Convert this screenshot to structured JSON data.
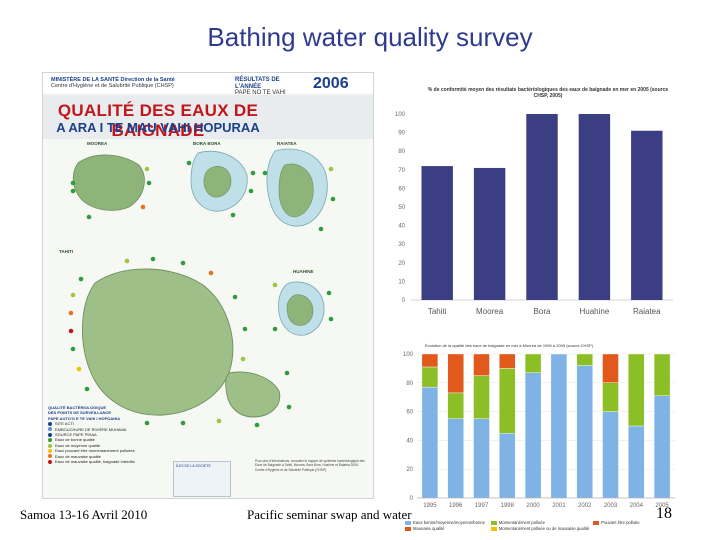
{
  "slide": {
    "title": "Bathing water quality survey",
    "footer_left": "Samoa 13-16 Avril 2010",
    "footer_center": "Pacific seminar swap and water",
    "page_number": "18"
  },
  "poster": {
    "ministry_line1": "MINISTÈRE DE LA SANTÉ  Direction de la Santé",
    "ministry_line2": "Centre d'Hygiène et de Salubrité Publique (CHSP)",
    "results_line1": "RÉSULTATS DE L'ANNÉE",
    "results_line2": "PAPE NO TE VAHI HOPOAHIA",
    "year": "2006",
    "banner_fr": "QUALITÉ DES EAUX DE BAIGNADE",
    "banner_ta": "A ARA I TE MAU VAHI HOPURAA",
    "islands": {
      "moorea": "MOOREA",
      "bora_bora": "BORA BORA",
      "raiatea": "RAIATEA",
      "tahiti": "TAHITI",
      "huahine": "HUAHINE"
    },
    "legend": {
      "heading1": "QUALITÉ BACTÉRIOLOGIQUE",
      "heading2": "DES POINTS DE SURVEILLANCE",
      "heading3": "PAPE AUTO'O E TE VAHI I HOPOAHIA",
      "items": [
        {
          "label": "SITE ACTI",
          "color": "#1b3f8a"
        },
        {
          "label": "EMBOUCHURE DE RIVIÈRE MUHAVAI",
          "color": "#5b8fd1"
        },
        {
          "label": "SOURCE PAPE PIHAA",
          "color": "#1b3f8a"
        },
        {
          "label": "Eaux de bonne qualité",
          "color": "#2e9e3a"
        },
        {
          "label": "Eaux de moyenne qualité",
          "color": "#9dc63a"
        },
        {
          "label": "Eaux pouvant être momentanément polluées",
          "color": "#f2c200"
        },
        {
          "label": "Eaux de mauvaise qualité",
          "color": "#e8711b"
        },
        {
          "label": "Eaux de mauvaise qualité, baignade interdite",
          "color": "#c2161b"
        }
      ]
    },
    "inset_label": "ÎLES DE LA SOCIÉTÉ",
    "note": "Pour plus d'informations, consulter le rapport de synthèse bactériologique des Eaux de Baignade à Tahiti, Moorea, Bora Bora, Huahine et Raiatea 2006. Centre d'Hygiène et de Salubrité Publique (CHSP)."
  },
  "chart_data": [
    {
      "type": "bar",
      "title": "% de conformité moyen des résultats bactériologiques des eaux de baignade en mer en 2005 (source CHSP, 2005)",
      "categories": [
        "Tahiti",
        "Moorea",
        "Bora",
        "Huahine",
        "Raiatea"
      ],
      "values": [
        72,
        71,
        100,
        100,
        91
      ],
      "ylim": [
        0,
        100
      ],
      "yticks": [
        0,
        10,
        20,
        30,
        40,
        50,
        60,
        70,
        80,
        90,
        100
      ],
      "color": "#3b3e82",
      "grid": false
    },
    {
      "type": "bar",
      "stacked": true,
      "title": "Évolution de la qualité des eaux de baignade en mer à Moorea de 1995 à 2005 (source CHSP)",
      "categories": [
        "1995",
        "1996",
        "1997",
        "1998",
        "2000",
        "2001",
        "2002",
        "2003",
        "2004",
        "2005"
      ],
      "ylim": [
        0,
        100
      ],
      "yticks": [
        0,
        20,
        40,
        60,
        80,
        100
      ],
      "series": [
        {
          "name": "Eaux bonne/moyenne/moyenne/bonne",
          "color": "#7fb2e5",
          "values": [
            77,
            55,
            55,
            45,
            87,
            100,
            92,
            60,
            50,
            71
          ]
        },
        {
          "name": "Momentanément polluée",
          "color": "#8cbf26",
          "values": [
            14,
            18,
            30,
            45,
            13,
            0,
            8,
            20,
            50,
            29
          ]
        },
        {
          "name": "Pouvant être polluée",
          "color": "#e2591c",
          "values": [
            9,
            27,
            15,
            10,
            0,
            0,
            0,
            20,
            0,
            0
          ]
        }
      ],
      "extra_legend": [
        "Mauvaise qualité",
        "Momentanément polluée ou de mauvaise qualité"
      ],
      "legend_position": "bottom"
    }
  ]
}
